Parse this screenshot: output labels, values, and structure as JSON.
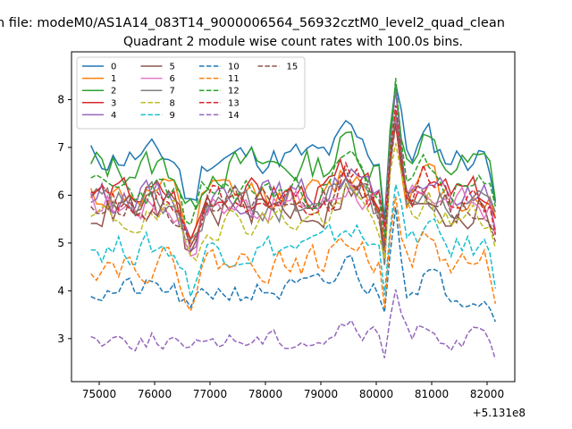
{
  "chart_data": {
    "type": "line",
    "suptitle": "n file: modeM0/AS1A14_083T14_9000006564_56932cztM0_level2_quad_clean",
    "title": "Quadrant 2 module wise count rates with 100.0s bins.",
    "xlabel": "",
    "ylabel": "",
    "x_offset_label": "+5.131e8",
    "xlim": [
      74500,
      82500
    ],
    "ylim": [
      2.1,
      9.0
    ],
    "xticks": [
      75000,
      76000,
      77000,
      78000,
      79000,
      80000,
      81000,
      82000
    ],
    "xtick_labels": [
      "75000",
      "76000",
      "77000",
      "78000",
      "79000",
      "80000",
      "81000",
      "82000"
    ],
    "yticks": [
      3,
      4,
      5,
      6,
      7,
      8
    ],
    "ytick_labels": [
      "3",
      "4",
      "5",
      "6",
      "7",
      "8"
    ],
    "legend_location": "upper-left",
    "legend_columns": 4,
    "x_start": 74850,
    "x_end": 82150,
    "x_step": 100,
    "spike_center": 80100,
    "series": [
      {
        "name": "0",
        "color": "#1f77b4",
        "dash": "solid",
        "base": 6.8,
        "noise": 0.3,
        "dip": 1.0,
        "spike": 1.6,
        "seed": 11
      },
      {
        "name": "1",
        "color": "#ff7f0e",
        "dash": "solid",
        "base": 6.0,
        "noise": 0.3,
        "dip": 0.9,
        "spike": 1.7,
        "seed": 12
      },
      {
        "name": "2",
        "color": "#2ca02c",
        "dash": "solid",
        "base": 6.6,
        "noise": 0.35,
        "dip": 1.0,
        "spike": 1.9,
        "seed": 13
      },
      {
        "name": "3",
        "color": "#d62728",
        "dash": "solid",
        "base": 6.0,
        "noise": 0.3,
        "dip": 1.0,
        "spike": 1.7,
        "seed": 14
      },
      {
        "name": "4",
        "color": "#9467bd",
        "dash": "solid",
        "base": 6.0,
        "noise": 0.3,
        "dip": 1.0,
        "spike": 1.8,
        "seed": 15
      },
      {
        "name": "5",
        "color": "#8c564b",
        "dash": "solid",
        "base": 5.7,
        "noise": 0.35,
        "dip": 1.0,
        "spike": 1.7,
        "seed": 16
      },
      {
        "name": "6",
        "color": "#e377c2",
        "dash": "solid",
        "base": 5.8,
        "noise": 0.3,
        "dip": 0.9,
        "spike": 1.6,
        "seed": 17
      },
      {
        "name": "7",
        "color": "#7f7f7f",
        "dash": "solid",
        "base": 5.8,
        "noise": 0.35,
        "dip": 1.0,
        "spike": 1.8,
        "seed": 18
      },
      {
        "name": "8",
        "color": "#bcbd22",
        "dash": "dashed",
        "base": 5.5,
        "noise": 0.3,
        "dip": 0.8,
        "spike": 1.5,
        "seed": 19
      },
      {
        "name": "9",
        "color": "#17becf",
        "dash": "dashed",
        "base": 4.9,
        "noise": 0.3,
        "dip": 0.8,
        "spike": 1.6,
        "seed": 20
      },
      {
        "name": "10",
        "color": "#1f77b4",
        "dash": "dashed",
        "base": 4.0,
        "noise": 0.25,
        "dip": 0.5,
        "spike": 2.0,
        "seed": 21
      },
      {
        "name": "11",
        "color": "#ff7f0e",
        "dash": "dashed",
        "base": 4.6,
        "noise": 0.3,
        "dip": 0.7,
        "spike": 1.8,
        "seed": 22
      },
      {
        "name": "12",
        "color": "#2ca02c",
        "dash": "dashed",
        "base": 6.1,
        "noise": 0.3,
        "dip": 0.9,
        "spike": 2.2,
        "seed": 23
      },
      {
        "name": "13",
        "color": "#d62728",
        "dash": "dashed",
        "base": 5.9,
        "noise": 0.3,
        "dip": 0.9,
        "spike": 1.8,
        "seed": 24
      },
      {
        "name": "14",
        "color": "#9467bd",
        "dash": "dashed",
        "base": 3.0,
        "noise": 0.2,
        "dip": 0.4,
        "spike": 1.0,
        "seed": 25
      },
      {
        "name": "15",
        "color": "#8c564b",
        "dash": "dashed",
        "base": 5.8,
        "noise": 0.3,
        "dip": 0.9,
        "spike": 1.7,
        "seed": 26
      }
    ]
  }
}
